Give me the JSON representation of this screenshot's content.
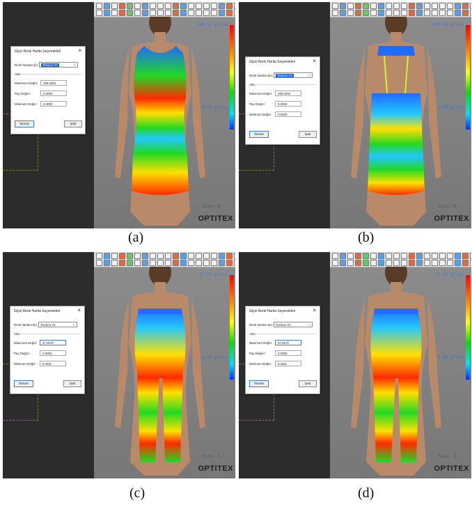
{
  "dialog": {
    "title": "Giysi Renk Harita Seçenekleri",
    "close_icon": "close-icon",
    "map_type_label": "Renk haritası tipi:",
    "group_label": "Alan",
    "max_label": "Maximum Değer:",
    "tolerance_label": "Pay Değeri:",
    "min_label": "Minimum Değer:",
    "ok_label": "Tamam",
    "cancel_label": "İptal"
  },
  "panels": [
    {
      "id": "a",
      "caption": "(a)",
      "view": "front",
      "garment": "top",
      "map_type": "Tension XY",
      "max": "269.5462",
      "tolerance": "0.0000",
      "min": "0.0000",
      "scale_max": "269.55 gf/cm",
      "scale_min": "0.00 gf/cm",
      "size": "Size: M",
      "brand": "OPTITEX"
    },
    {
      "id": "b",
      "caption": "(b)",
      "view": "back",
      "garment": "top",
      "map_type": "Tension XY",
      "max": "269.5462",
      "tolerance": "0.0000",
      "min": "0.0000",
      "scale_max": "269.55 gf/cm",
      "scale_min": "0.00 gf/cm",
      "size": "Size: M",
      "brand": "OPTITEX"
    },
    {
      "id": "c",
      "caption": "(c)",
      "view": "front",
      "garment": "leggings",
      "map_type": "Tension XY",
      "max": "37.6670",
      "tolerance": "0.0000",
      "min": "6.4611",
      "scale_max": "37.67 gf/cm",
      "scale_min": "6.46 gf/cm",
      "size": "Size: S",
      "brand": "OPTITEX"
    },
    {
      "id": "d",
      "caption": "(d)",
      "view": "back",
      "garment": "leggings",
      "map_type": "Tension XY",
      "max": "37.6670",
      "tolerance": "0.0000",
      "min": "6.4611",
      "scale_max": "37.67 gf/cm",
      "scale_min": "6.46 gf/cm",
      "size": "Size: S",
      "brand": "OPTITEX"
    }
  ],
  "colors": {
    "map_red": "#ff2a00",
    "map_yellow": "#ffe000",
    "map_green": "#22d822",
    "map_blue": "#1f6cff",
    "skin": "#b98a6a"
  }
}
